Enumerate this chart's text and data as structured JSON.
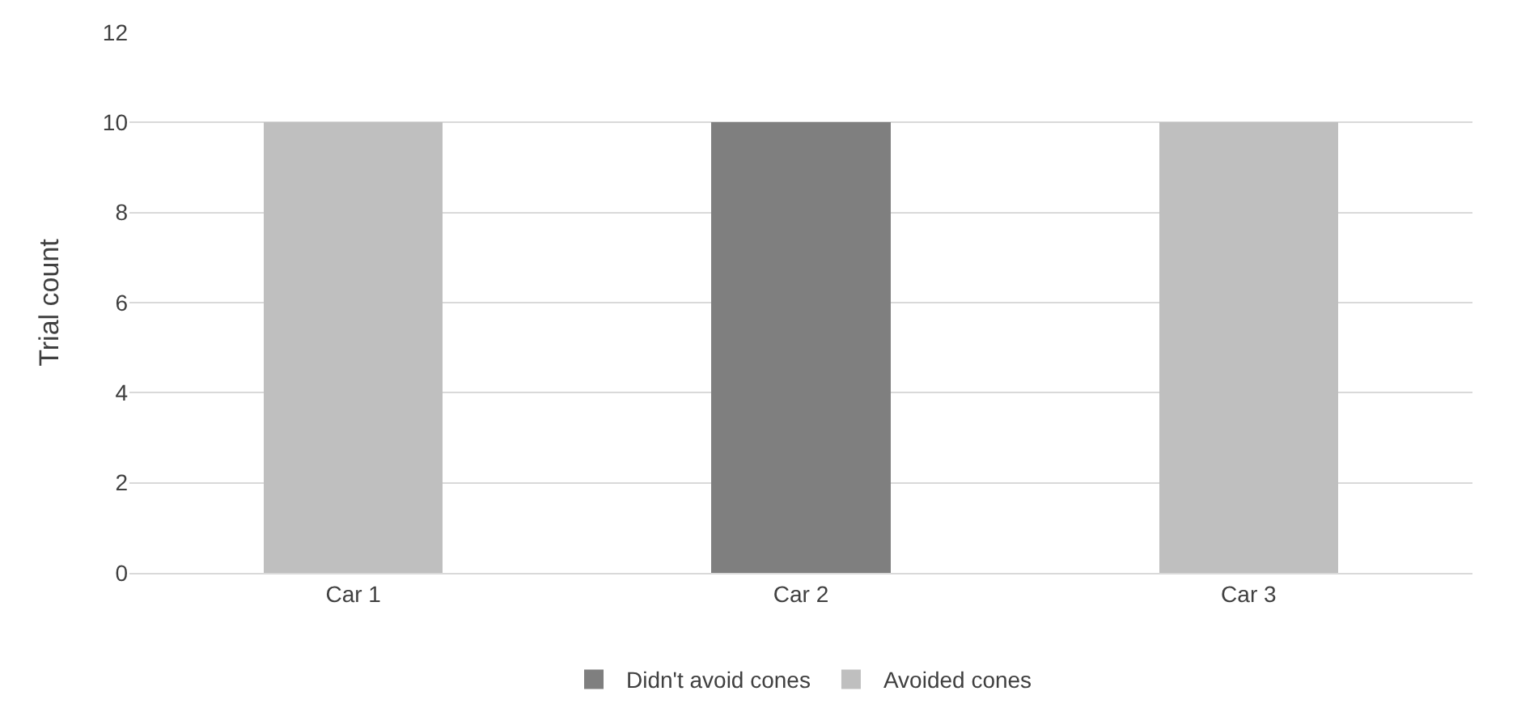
{
  "chart_data": {
    "type": "bar",
    "ylabel": "Trial count",
    "categories": [
      "Car 1",
      "Car 2",
      "Car 3"
    ],
    "stacked": true,
    "series": [
      {
        "name": "Avoided cones",
        "color": "#bfbfbf",
        "values": [
          10,
          0,
          10
        ]
      },
      {
        "name": "Didn't avoid cones",
        "color": "#7f7f7f",
        "values": [
          0,
          10,
          0
        ]
      }
    ],
    "ylim": [
      0,
      12
    ],
    "yticks": [
      0,
      2,
      4,
      6,
      8,
      10,
      12
    ],
    "grid": "y",
    "legend": "bottom"
  }
}
